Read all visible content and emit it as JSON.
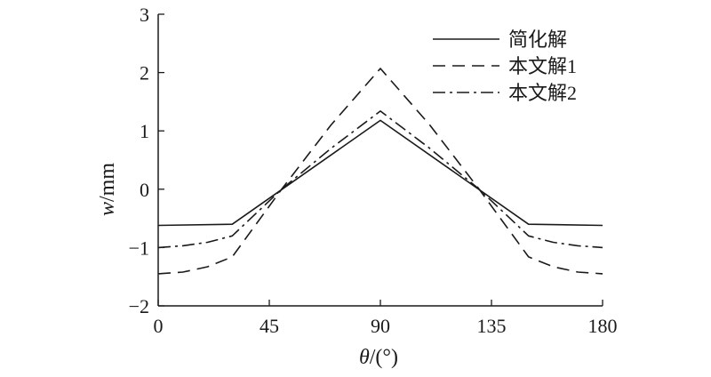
{
  "chart_data": {
    "type": "line",
    "xlabel_italic": "θ",
    "xlabel_rest": "/(°)",
    "ylabel_italic": "w",
    "ylabel_rest": "/mm",
    "xlim": [
      0,
      180
    ],
    "ylim": [
      -2,
      3
    ],
    "xticks": [
      0,
      45,
      90,
      135,
      180
    ],
    "xtick_labels": [
      "0",
      "45",
      "90",
      "135",
      "180"
    ],
    "yticks": [
      -2,
      -1,
      0,
      1,
      2,
      3
    ],
    "ytick_labels": [
      "−2",
      "−1",
      "0",
      "1",
      "2",
      "3"
    ],
    "grid": false,
    "legend_position": "top-right",
    "series": [
      {
        "name": "简化解",
        "style": "solid",
        "color": "#1a1a1a",
        "x": [
          0,
          30,
          90,
          150,
          180
        ],
        "y": [
          -0.62,
          -0.6,
          1.18,
          -0.6,
          -0.62
        ]
      },
      {
        "name": "本文解1",
        "style": "dashed",
        "color": "#1a1a1a",
        "x": [
          0,
          10,
          20,
          30,
          50,
          70,
          90,
          110,
          130,
          150,
          160,
          170,
          180
        ],
        "y": [
          -1.45,
          -1.42,
          -1.33,
          -1.16,
          0.0,
          1.1,
          2.07,
          1.1,
          0.0,
          -1.16,
          -1.33,
          -1.42,
          -1.45
        ]
      },
      {
        "name": "本文解2",
        "style": "dashdot",
        "color": "#1a1a1a",
        "x": [
          0,
          10,
          20,
          30,
          50,
          70,
          90,
          110,
          130,
          150,
          160,
          170,
          180
        ],
        "y": [
          -1.0,
          -0.97,
          -0.91,
          -0.8,
          0.0,
          0.7,
          1.34,
          0.7,
          0.0,
          -0.8,
          -0.91,
          -0.97,
          -1.0
        ]
      }
    ]
  }
}
